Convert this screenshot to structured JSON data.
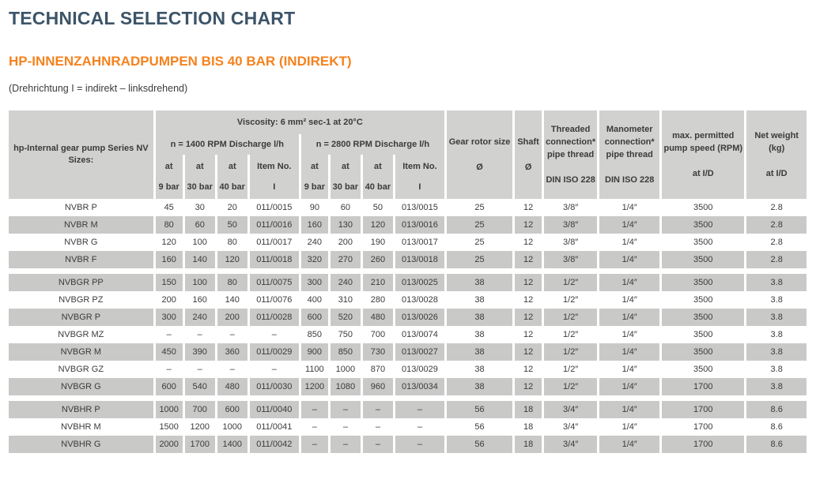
{
  "page": {
    "title": "TECHNICAL SELECTION CHART",
    "subtitle": "HP-INNENZAHNRADPUMPEN BIS 40 BAR (INDIREKT)",
    "note": "(Drehrichtung I = indirekt – linksdrehend)"
  },
  "colors": {
    "title": "#3c5468",
    "accent_orange": "#f5821e",
    "body_text": "#3b3b3b",
    "header_bg": "#d1d1cf",
    "row_alt_bg": "#c9c9c7",
    "separator": "#ffffff"
  },
  "table": {
    "header": {
      "pump_col": "hp-Internal gear pump Series NV\nSizes:",
      "viscosity": "Viscosity: 6 mm² sec-1 at 20°C",
      "group_1400": "n = 1400 RPM Discharge l/h",
      "group_2800": "n = 2800 RPM Discharge l/h",
      "subcols": [
        "at\n9 bar",
        "at\n30 bar",
        "at\n40 bar",
        "Item No.\nI",
        "at\n9 bar",
        "at\n30 bar",
        "at\n40 bar",
        "Item No.\nI"
      ],
      "right_cols": [
        "Gear rotor size\n\nØ",
        "Shaft\n\nØ",
        "Threaded\nconnection*\npipe thread\n\nDIN ISO 228",
        "Manometer\nconnection*\npipe thread\n\nDIN ISO 228",
        "max. permitted\npump speed (RPM)\n\nat I/D",
        "Net weight\n(kg)\n\nat I/D"
      ]
    },
    "groups": [
      {
        "first_shaded": false,
        "rows": [
          {
            "name": "NVBR P",
            "values": [
              "45",
              "30",
              "20",
              "011/0015",
              "90",
              "60",
              "50",
              "013/0015",
              "25",
              "12",
              "3/8″",
              "1/4″",
              "3500",
              "2.8"
            ]
          },
          {
            "name": "NVBR M",
            "values": [
              "80",
              "60",
              "50",
              "011/0016",
              "160",
              "130",
              "120",
              "013/0016",
              "25",
              "12",
              "3/8″",
              "1/4″",
              "3500",
              "2.8"
            ]
          },
          {
            "name": "NVBR G",
            "values": [
              "120",
              "100",
              "80",
              "011/0017",
              "240",
              "200",
              "190",
              "013/0017",
              "25",
              "12",
              "3/8″",
              "1/4″",
              "3500",
              "2.8"
            ]
          },
          {
            "name": "NVBR F",
            "values": [
              "160",
              "140",
              "120",
              "011/0018",
              "320",
              "270",
              "260",
              "013/0018",
              "25",
              "12",
              "3/8″",
              "1/4″",
              "3500",
              "2.8"
            ]
          }
        ]
      },
      {
        "first_shaded": true,
        "rows": [
          {
            "name": "NVBGR PP",
            "values": [
              "150",
              "100",
              "80",
              "011/0075",
              "300",
              "240",
              "210",
              "013/0025",
              "38",
              "12",
              "1/2″",
              "1/4″",
              "3500",
              "3.8"
            ]
          },
          {
            "name": "NVBGR PZ",
            "values": [
              "200",
              "160",
              "140",
              "011/0076",
              "400",
              "310",
              "280",
              "013/0028",
              "38",
              "12",
              "1/2″",
              "1/4″",
              "3500",
              "3.8"
            ]
          },
          {
            "name": "NVBGR P",
            "values": [
              "300",
              "240",
              "200",
              "011/0028",
              "600",
              "520",
              "480",
              "013/0026",
              "38",
              "12",
              "1/2″",
              "1/4″",
              "3500",
              "3.8"
            ]
          },
          {
            "name": "NVBGR MZ",
            "values": [
              "–",
              "–",
              "–",
              "–",
              "850",
              "750",
              "700",
              "013/0074",
              "38",
              "12",
              "1/2″",
              "1/4″",
              "3500",
              "3.8"
            ]
          },
          {
            "name": "NVBGR M",
            "values": [
              "450",
              "390",
              "360",
              "011/0029",
              "900",
              "850",
              "730",
              "013/0027",
              "38",
              "12",
              "1/2″",
              "1/4″",
              "3500",
              "3.8"
            ]
          },
          {
            "name": "NVBGR GZ",
            "values": [
              "–",
              "–",
              "–",
              "–",
              "1100",
              "1000",
              "870",
              "013/0029",
              "38",
              "12",
              "1/2″",
              "1/4″",
              "3500",
              "3.8"
            ]
          },
          {
            "name": "NVBGR G",
            "values": [
              "600",
              "540",
              "480",
              "011/0030",
              "1200",
              "1080",
              "960",
              "013/0034",
              "38",
              "12",
              "1/2″",
              "1/4″",
              "1700",
              "3.8"
            ]
          }
        ]
      },
      {
        "first_shaded": true,
        "rows": [
          {
            "name": "NVBHR P",
            "values": [
              "1000",
              "700",
              "600",
              "011/0040",
              "–",
              "–",
              "–",
              "–",
              "56",
              "18",
              "3/4″",
              "1/4″",
              "1700",
              "8.6"
            ]
          },
          {
            "name": "NVBHR M",
            "values": [
              "1500",
              "1200",
              "1000",
              "011/0041",
              "–",
              "–",
              "–",
              "–",
              "56",
              "18",
              "3/4″",
              "1/4″",
              "1700",
              "8.6"
            ]
          },
          {
            "name": "NVBHR G",
            "values": [
              "2000",
              "1700",
              "1400",
              "011/0042",
              "–",
              "–",
              "–",
              "–",
              "56",
              "18",
              "3/4″",
              "1/4″",
              "1700",
              "8.6"
            ]
          }
        ]
      }
    ]
  }
}
